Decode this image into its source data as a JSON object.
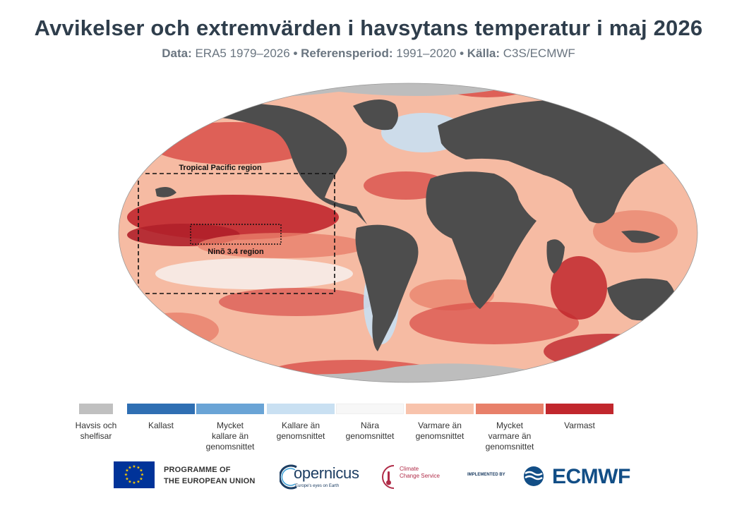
{
  "header": {
    "title": "Avvikelser och extremvärden i havsytans temperatur i maj 2026",
    "data_label": "Data:",
    "data_value": "ERA5 1979–2026",
    "separator": "•",
    "ref_label": "Referensperiod:",
    "ref_value": "1991–2020",
    "source_label": "Källa:",
    "source_value": "C3S/ECMWF"
  },
  "map": {
    "regions": {
      "tropical_pacific": "Tropical Pacific region",
      "nino34": "Ninõ 3.4 region"
    },
    "colors": {
      "land": "#4d4d4d",
      "sea_ice": "#bdbdbd",
      "ocean_base": "#f6bba3"
    }
  },
  "legend": [
    {
      "color": "#c0c0c0",
      "label": "Havsis och\nshelfisar"
    },
    {
      "color": "#2f6fb3",
      "label": "Kallast"
    },
    {
      "color": "#6aa4d6",
      "label": "Mycket\nkallare än\ngenomsnittet"
    },
    {
      "color": "#c9e0f2",
      "label": "Kallare än\ngenomsnittet"
    },
    {
      "color": "#f7f7f7",
      "label": "Nära\ngenomsnittet"
    },
    {
      "color": "#f8c3ac",
      "label": "Varmare än\ngenomsnittet"
    },
    {
      "color": "#e8806a",
      "label": "Mycket\nvarmare än\ngenomsnittet"
    },
    {
      "color": "#c1272d",
      "label": "Varmast"
    }
  ],
  "logos": {
    "eu_line1": "PROGRAMME OF",
    "eu_line2": "THE EUROPEAN UNION",
    "copernicus": "opernicus",
    "copernicus_tagline": "Europe's eyes on Earth",
    "c3s_line1": "Climate",
    "c3s_line2": "Change Service",
    "implemented_by": "IMPLEMENTED BY",
    "ecmwf": "ECMWF"
  }
}
